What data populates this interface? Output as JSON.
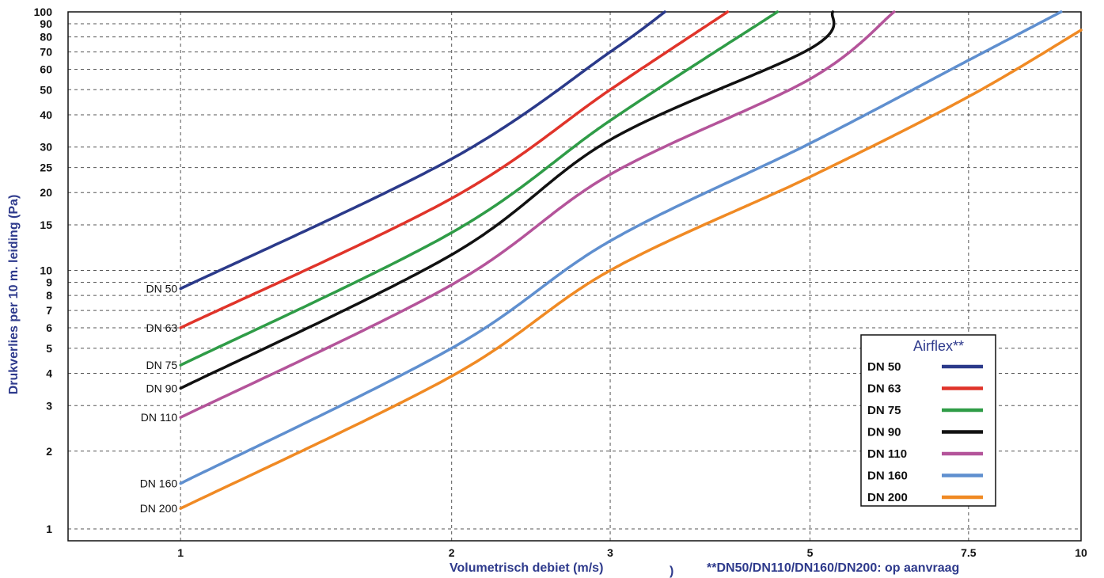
{
  "chart_data": {
    "type": "line",
    "ylabel": "Drukverlies per 10 m. leiding (Pa)",
    "xlabel": "Volumetrisch debiet (m/s)",
    "note": "**DN50/DN110/DN160/DN200: op aanvraag",
    "x_scale": "log",
    "y_scale": "log",
    "xlim": [
      0.75,
      10
    ],
    "ylim": [
      0.9,
      100
    ],
    "x_ticks": [
      {
        "v": 1,
        "label": "1"
      },
      {
        "v": 2,
        "label": "2"
      },
      {
        "v": 3,
        "label": "3"
      },
      {
        "v": 5,
        "label": "5"
      },
      {
        "v": 7.5,
        "label": "7.5"
      },
      {
        "v": 10,
        "label": "10"
      }
    ],
    "y_ticks": [
      {
        "v": 1,
        "label": "1"
      },
      {
        "v": 2,
        "label": "2"
      },
      {
        "v": 3,
        "label": "3"
      },
      {
        "v": 4,
        "label": "4"
      },
      {
        "v": 5,
        "label": "5"
      },
      {
        "v": 6,
        "label": "6"
      },
      {
        "v": 7,
        "label": "7"
      },
      {
        "v": 8,
        "label": "8"
      },
      {
        "v": 9,
        "label": "9"
      },
      {
        "v": 10,
        "label": "10"
      },
      {
        "v": 15,
        "label": "15"
      },
      {
        "v": 20,
        "label": "20"
      },
      {
        "v": 25,
        "label": "25"
      },
      {
        "v": 30,
        "label": "30"
      },
      {
        "v": 40,
        "label": "40"
      },
      {
        "v": 50,
        "label": "50"
      },
      {
        "v": 60,
        "label": "60"
      },
      {
        "v": 70,
        "label": "70"
      },
      {
        "v": 80,
        "label": "80"
      },
      {
        "v": 90,
        "label": "90"
      },
      {
        "v": 100,
        "label": "100"
      }
    ],
    "grid": true,
    "legend": {
      "title": "Airflex**",
      "position": "bottom-right"
    },
    "series": [
      {
        "name": "DN 50",
        "color": "#2b3a8a",
        "points": [
          [
            1,
            8.5
          ],
          [
            2,
            27
          ],
          [
            3,
            70
          ],
          [
            3.45,
            100
          ]
        ]
      },
      {
        "name": "DN 63",
        "color": "#e0342a",
        "points": [
          [
            1,
            6
          ],
          [
            2,
            19
          ],
          [
            3,
            50
          ],
          [
            4.05,
            100
          ]
        ]
      },
      {
        "name": "DN 75",
        "color": "#2f9c47",
        "points": [
          [
            1,
            4.3
          ],
          [
            2,
            14
          ],
          [
            3,
            38
          ],
          [
            4.6,
            100
          ]
        ]
      },
      {
        "name": "DN 90",
        "color": "#111111",
        "points": [
          [
            1,
            3.5
          ],
          [
            2,
            11.5
          ],
          [
            3,
            32
          ],
          [
            5,
            72
          ],
          [
            5.3,
            100
          ]
        ]
      },
      {
        "name": "DN 110",
        "color": "#b4549a",
        "points": [
          [
            1,
            2.7
          ],
          [
            2,
            8.8
          ],
          [
            3,
            23.5
          ],
          [
            5,
            55
          ],
          [
            6.2,
            100
          ]
        ]
      },
      {
        "name": "DN 160",
        "color": "#5f8fcf",
        "points": [
          [
            1,
            1.5
          ],
          [
            2,
            5
          ],
          [
            3,
            13
          ],
          [
            5,
            31
          ],
          [
            7.5,
            65
          ],
          [
            9.5,
            100
          ]
        ]
      },
      {
        "name": "DN 200",
        "color": "#f08a24",
        "points": [
          [
            1,
            1.2
          ],
          [
            2,
            3.9
          ],
          [
            3,
            10
          ],
          [
            5,
            23
          ],
          [
            7.5,
            47
          ],
          [
            10,
            85
          ]
        ]
      }
    ]
  }
}
